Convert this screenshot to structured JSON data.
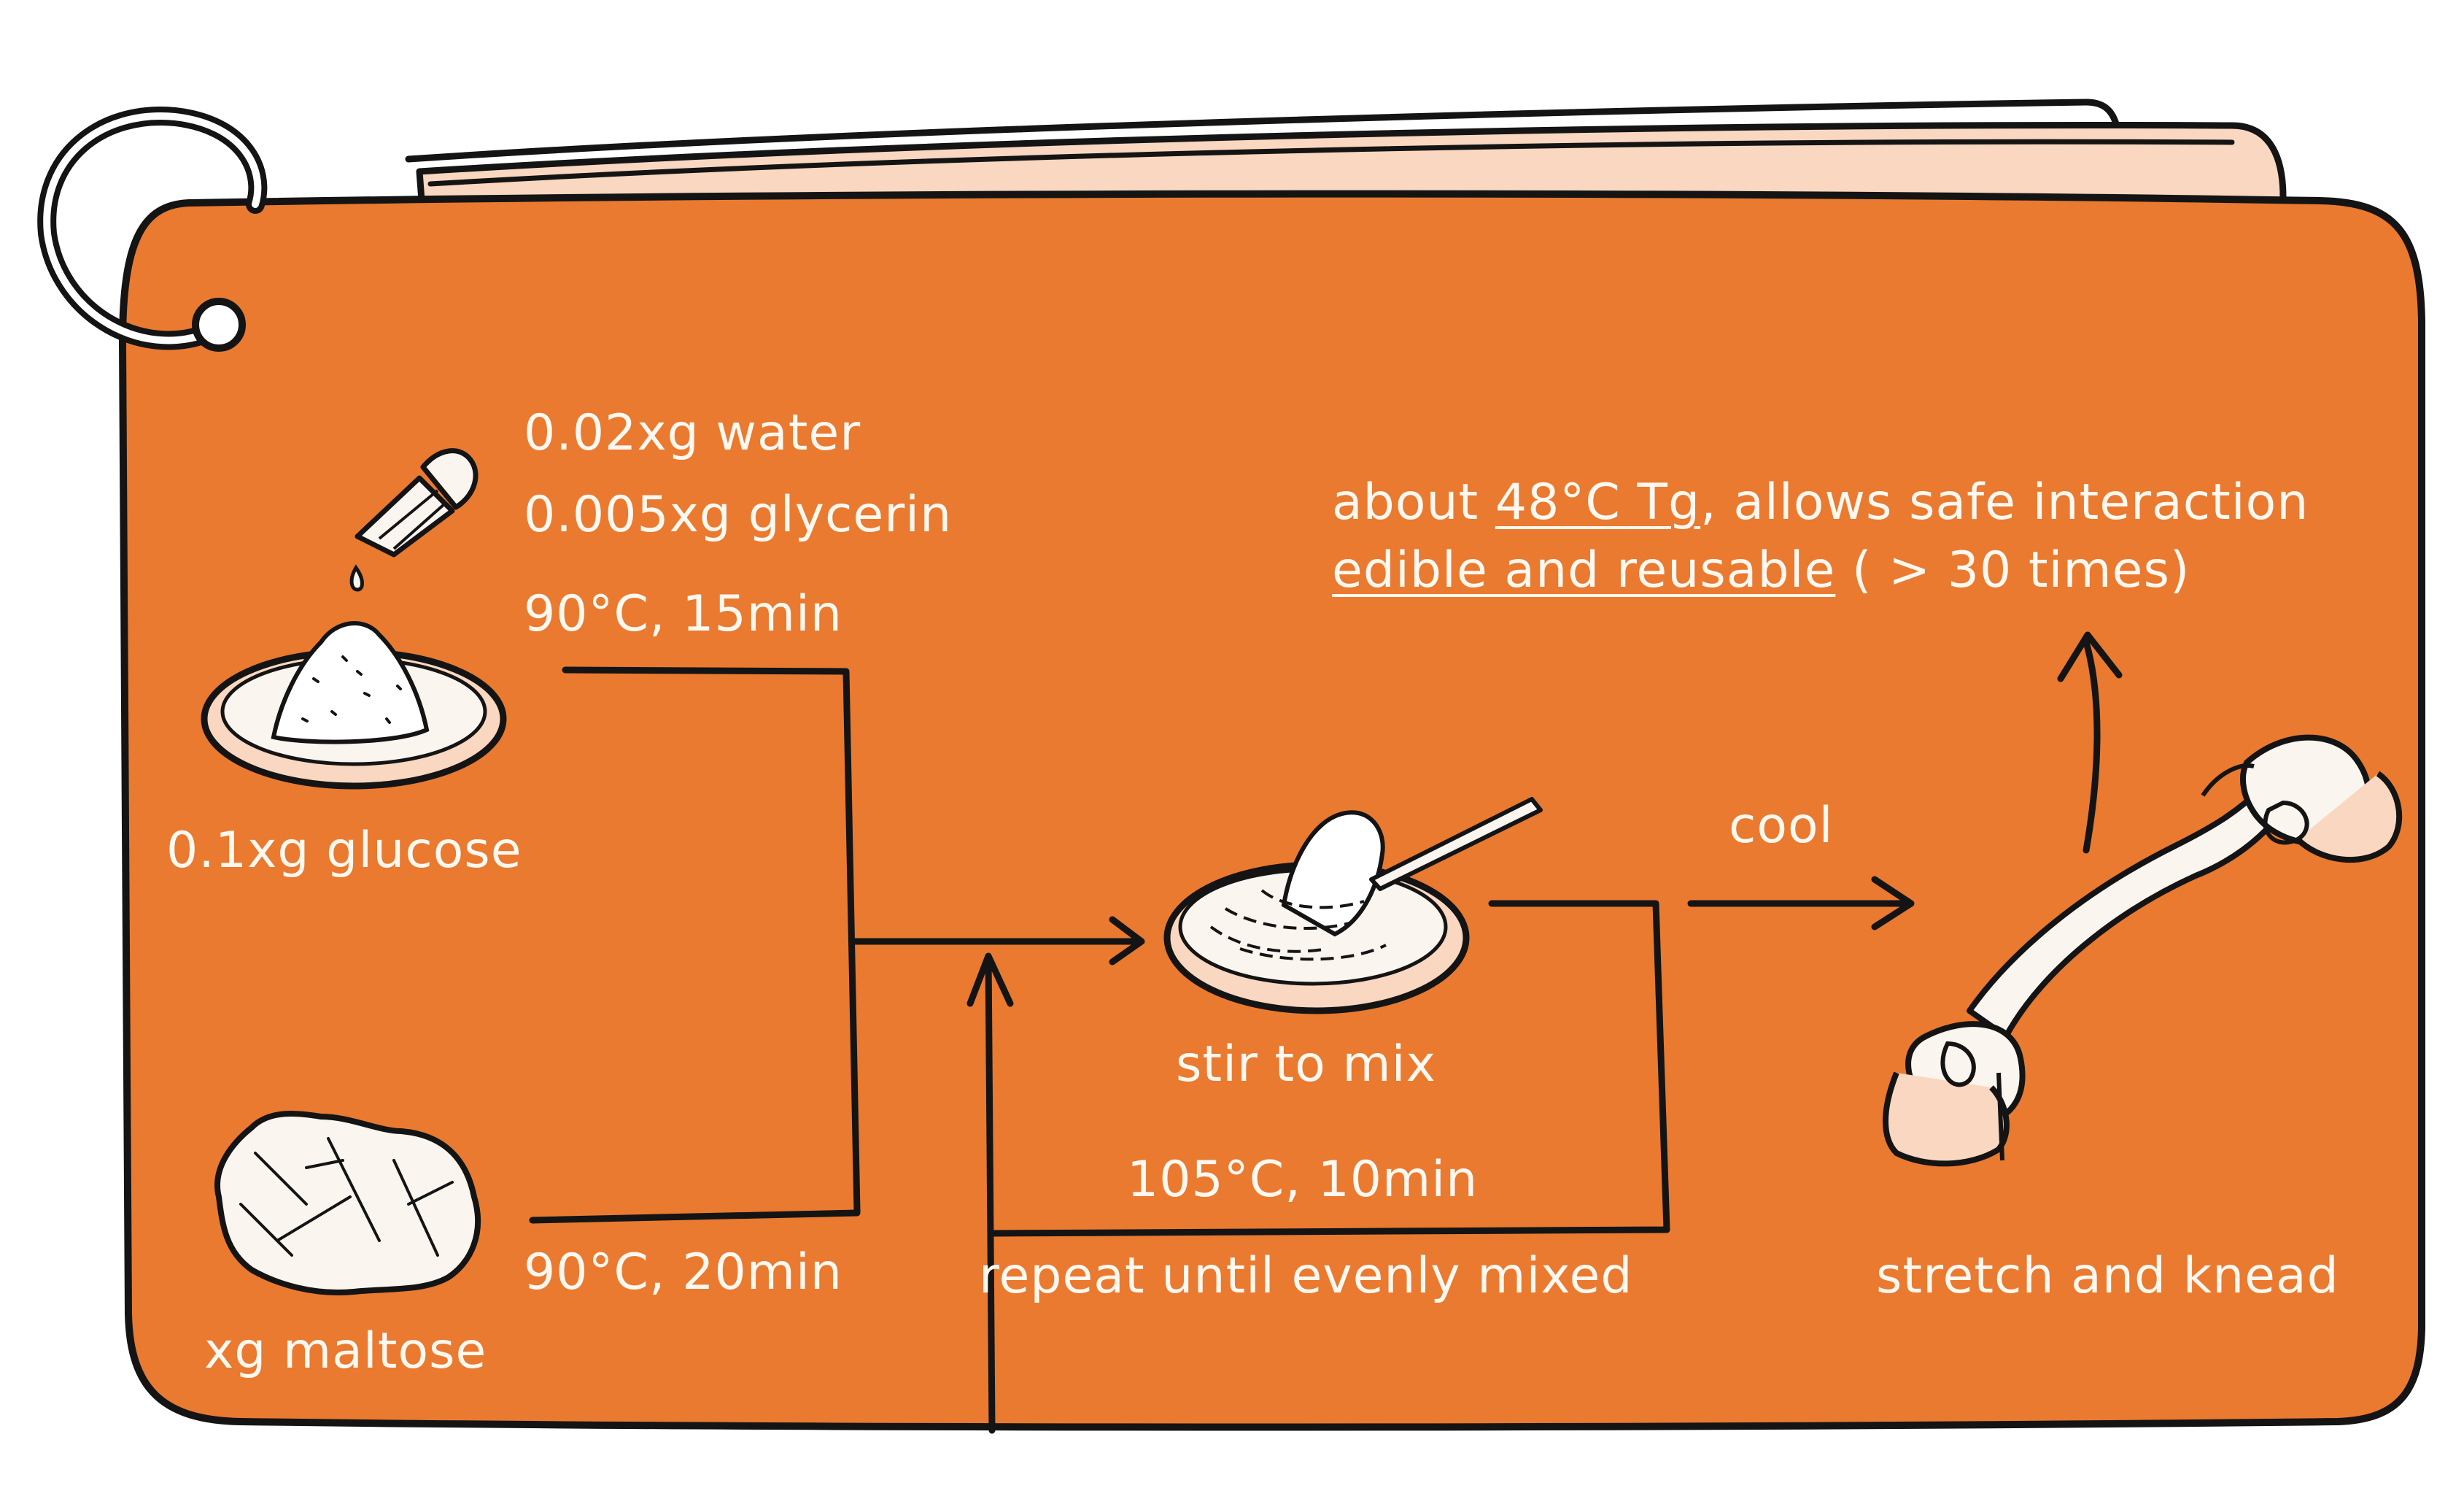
{
  "colors": {
    "card": "#e97a30",
    "ink": "#141414",
    "text": "#fff8f0",
    "paper": "#f9d7c0",
    "powder": "#fbf5ef"
  },
  "labels": {
    "water": "0.02xg water",
    "glycerin": "0.005xg glycerin",
    "heat1": "90°C, 15min",
    "glucose": "0.1xg glucose",
    "heat2": "90°C, 20min",
    "maltose": "xg maltose",
    "stir": "stir to mix",
    "heat3": "105°C, 10min",
    "repeat": "repeat until evenly mixed",
    "cool": "cool",
    "stretch": "stretch and knead"
  },
  "note": {
    "line1_pre": "about ",
    "line1_u": "48°C Tg",
    "line1_post": ", allows safe interaction",
    "line2_u": "edible and reusable",
    "line2_post": " ( > 30 times)"
  },
  "icons": [
    "dropper-icon",
    "glucose-dish-icon",
    "maltose-lump-icon",
    "mixing-bowl-icon",
    "stretching-hands-icon"
  ]
}
